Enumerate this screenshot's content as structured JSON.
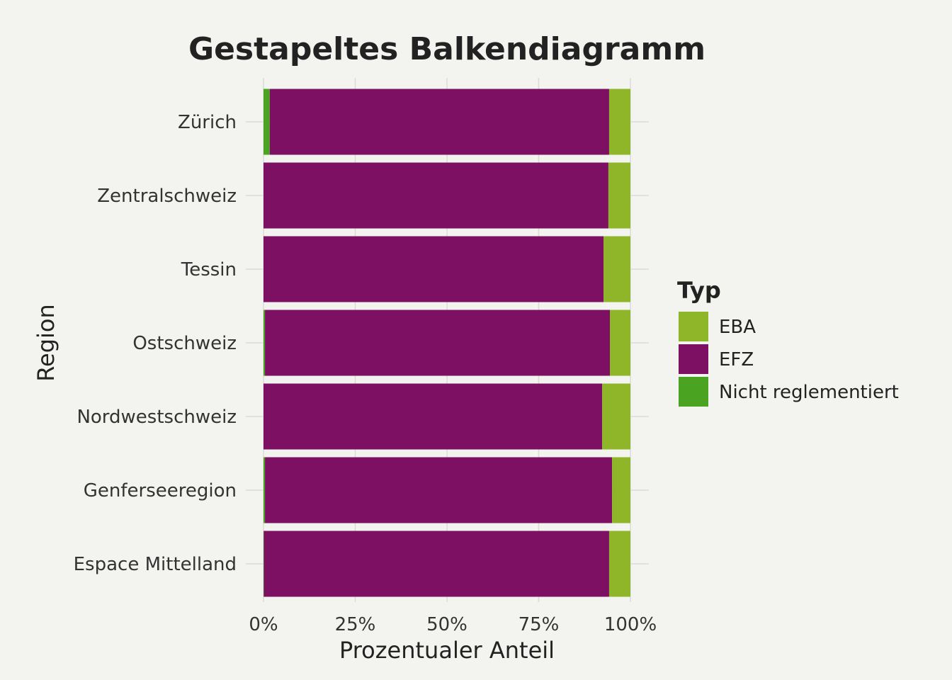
{
  "chart_data": {
    "type": "bar",
    "orientation": "horizontal",
    "stacked": true,
    "title": "Gestapeltes Balkendiagramm",
    "xlabel": "Prozentualer Anteil",
    "ylabel": "Region",
    "xlim": [
      0,
      100
    ],
    "xticks": [
      "0%",
      "25%",
      "50%",
      "75%",
      "100%"
    ],
    "xtick_values": [
      0,
      25,
      50,
      75,
      100
    ],
    "categories": [
      "Zürich",
      "Zentralschweiz",
      "Tessin",
      "Ostschweiz",
      "Nordwestschweiz",
      "Genferseeregion",
      "Espace Mittelland"
    ],
    "stack_order": [
      "Nicht reglementiert",
      "EFZ",
      "EBA"
    ],
    "series": [
      {
        "name": "EBA",
        "color": "#8fb628",
        "values": [
          5.8,
          6.0,
          7.3,
          5.6,
          7.7,
          5.0,
          5.8
        ]
      },
      {
        "name": "EFZ",
        "color": "#7d1062",
        "values": [
          92.5,
          94.0,
          92.7,
          94.0,
          92.3,
          94.6,
          94.1
        ]
      },
      {
        "name": "Nicht reglementiert",
        "color": "#4aa321",
        "values": [
          1.7,
          0.0,
          0.0,
          0.4,
          0.0,
          0.4,
          0.1
        ]
      }
    ],
    "legend": {
      "title": "Typ",
      "placement": "right"
    },
    "grid": true
  }
}
